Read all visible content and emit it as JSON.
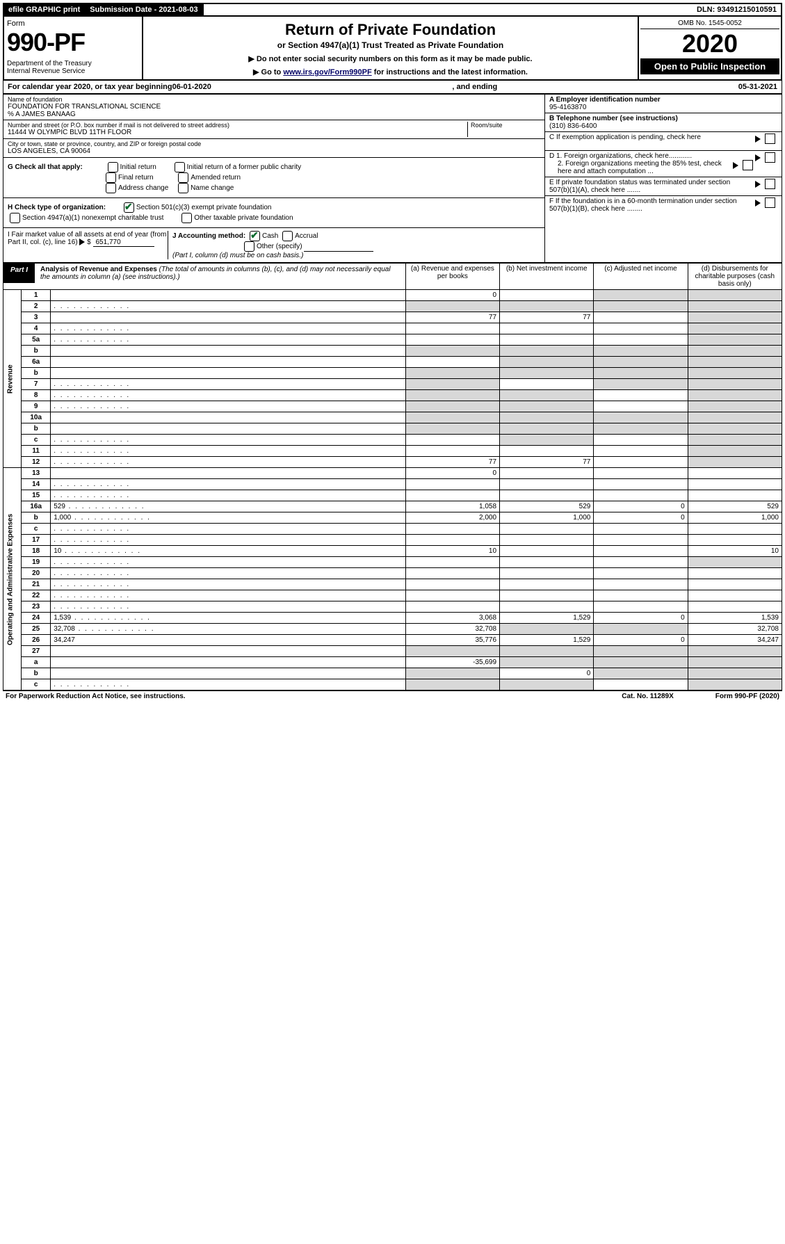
{
  "topbar": {
    "efile": "efile GRAPHIC print",
    "submission_label": "Submission Date - 2021-08-03",
    "dln": "DLN: 93491215010591"
  },
  "header": {
    "form_word": "Form",
    "form_number": "990-PF",
    "dept": "Department of the Treasury\nInternal Revenue Service",
    "title": "Return of Private Foundation",
    "subtitle": "or Section 4947(a)(1) Trust Treated as Private Foundation",
    "inst1": "▶ Do not enter social security numbers on this form as it may be made public.",
    "inst2_prefix": "▶ Go to ",
    "inst2_link": "www.irs.gov/Form990PF",
    "inst2_suffix": " for instructions and the latest information.",
    "omb": "OMB No. 1545-0052",
    "year": "2020",
    "open": "Open to Public Inspection"
  },
  "tax_year": {
    "prefix": "For calendar year 2020, or tax year beginning ",
    "begin": "06-01-2020",
    "mid": " , and ending ",
    "end": "05-31-2021"
  },
  "entity": {
    "name_label": "Name of foundation",
    "name": "FOUNDATION FOR TRANSLATIONAL SCIENCE",
    "care_of": "% A JAMES BANAAG",
    "addr_label": "Number and street (or P.O. box number if mail is not delivered to street address)",
    "addr": "11444 W OLYMPIC BLVD 11TH FLOOR",
    "room_label": "Room/suite",
    "city_label": "City or town, state or province, country, and ZIP or foreign postal code",
    "city": "LOS ANGELES, CA  90064"
  },
  "right_info": {
    "a_label": "A Employer identification number",
    "a_val": "95-4163870",
    "b_label": "B Telephone number (see instructions)",
    "b_val": "(310) 836-6400",
    "c_label": "C If exemption application is pending, check here",
    "d1": "D 1. Foreign organizations, check here............",
    "d2": "2. Foreign organizations meeting the 85% test, check here and attach computation ...",
    "e": "E If private foundation status was terminated under section 507(b)(1)(A), check here .......",
    "f": "F If the foundation is in a 60-month termination under section 507(b)(1)(B), check here ........"
  },
  "checks": {
    "g_label": "G Check all that apply:",
    "g_items": [
      "Initial return",
      "Initial return of a former public charity",
      "Final return",
      "Amended return",
      "Address change",
      "Name change"
    ],
    "h_label": "H Check type of organization:",
    "h1": "Section 501(c)(3) exempt private foundation",
    "h2": "Section 4947(a)(1) nonexempt charitable trust",
    "h3": "Other taxable private foundation",
    "i_label": "I Fair market value of all assets at end of year (from Part II, col. (c), line 16)",
    "i_val": "651,770",
    "j_label": "J Accounting method:",
    "j_cash": "Cash",
    "j_accrual": "Accrual",
    "j_other": "Other (specify)",
    "j_note": "(Part I, column (d) must be on cash basis.)"
  },
  "part1": {
    "tab": "Part I",
    "title": "Analysis of Revenue and Expenses",
    "note": "(The total of amounts in columns (b), (c), and (d) may not necessarily equal the amounts in column (a) (see instructions).)",
    "col_a": "(a) Revenue and expenses per books",
    "col_b": "(b) Net investment income",
    "col_c": "(c) Adjusted net income",
    "col_d": "(d) Disbursements for charitable purposes (cash basis only)",
    "revenue_label": "Revenue",
    "expenses_label": "Operating and Administrative Expenses"
  },
  "rows": [
    {
      "n": "1",
      "d": "",
      "a": "0",
      "b": "",
      "c": "",
      "shade": [
        "c",
        "d"
      ]
    },
    {
      "n": "2",
      "d": "",
      "a": "",
      "b": "",
      "c": "",
      "shade": [
        "a",
        "b",
        "c",
        "d"
      ],
      "dots": true
    },
    {
      "n": "3",
      "d": "",
      "a": "77",
      "b": "77",
      "c": "",
      "shade": [
        "d"
      ]
    },
    {
      "n": "4",
      "d": "",
      "a": "",
      "b": "",
      "c": "",
      "shade": [
        "d"
      ],
      "dots": true
    },
    {
      "n": "5a",
      "d": "",
      "a": "",
      "b": "",
      "c": "",
      "shade": [
        "d"
      ],
      "dots": true
    },
    {
      "n": "b",
      "d": "",
      "a": "",
      "b": "",
      "c": "",
      "shade": [
        "a",
        "b",
        "c",
        "d"
      ]
    },
    {
      "n": "6a",
      "d": "",
      "a": "",
      "b": "",
      "c": "",
      "shade": [
        "b",
        "c",
        "d"
      ]
    },
    {
      "n": "b",
      "d": "",
      "a": "",
      "b": "",
      "c": "",
      "shade": [
        "a",
        "b",
        "c",
        "d"
      ]
    },
    {
      "n": "7",
      "d": "",
      "a": "",
      "b": "",
      "c": "",
      "shade": [
        "a",
        "c",
        "d"
      ],
      "dots": true
    },
    {
      "n": "8",
      "d": "",
      "a": "",
      "b": "",
      "c": "",
      "shade": [
        "a",
        "b",
        "d"
      ],
      "dots": true
    },
    {
      "n": "9",
      "d": "",
      "a": "",
      "b": "",
      "c": "",
      "shade": [
        "a",
        "b",
        "d"
      ],
      "dots": true
    },
    {
      "n": "10a",
      "d": "",
      "a": "",
      "b": "",
      "c": "",
      "shade": [
        "a",
        "b",
        "c",
        "d"
      ]
    },
    {
      "n": "b",
      "d": "",
      "a": "",
      "b": "",
      "c": "",
      "shade": [
        "a",
        "b",
        "c",
        "d"
      ]
    },
    {
      "n": "c",
      "d": "",
      "a": "",
      "b": "",
      "c": "",
      "shade": [
        "b",
        "d"
      ],
      "dots": true
    },
    {
      "n": "11",
      "d": "",
      "a": "",
      "b": "",
      "c": "",
      "shade": [
        "d"
      ],
      "dots": true
    },
    {
      "n": "12",
      "d": "",
      "a": "77",
      "b": "77",
      "c": "",
      "shade": [
        "d"
      ],
      "dots": true
    },
    {
      "n": "13",
      "d": "",
      "a": "0",
      "b": "",
      "c": ""
    },
    {
      "n": "14",
      "d": "",
      "a": "",
      "b": "",
      "c": "",
      "dots": true
    },
    {
      "n": "15",
      "d": "",
      "a": "",
      "b": "",
      "c": "",
      "dots": true
    },
    {
      "n": "16a",
      "d": "529",
      "a": "1,058",
      "b": "529",
      "c": "0",
      "dots": true
    },
    {
      "n": "b",
      "d": "1,000",
      "a": "2,000",
      "b": "1,000",
      "c": "0",
      "dots": true
    },
    {
      "n": "c",
      "d": "",
      "a": "",
      "b": "",
      "c": "",
      "dots": true
    },
    {
      "n": "17",
      "d": "",
      "a": "",
      "b": "",
      "c": "",
      "dots": true
    },
    {
      "n": "18",
      "d": "10",
      "a": "10",
      "b": "",
      "c": "",
      "dots": true
    },
    {
      "n": "19",
      "d": "",
      "a": "",
      "b": "",
      "c": "",
      "shade": [
        "d"
      ],
      "dots": true
    },
    {
      "n": "20",
      "d": "",
      "a": "",
      "b": "",
      "c": "",
      "dots": true
    },
    {
      "n": "21",
      "d": "",
      "a": "",
      "b": "",
      "c": "",
      "dots": true
    },
    {
      "n": "22",
      "d": "",
      "a": "",
      "b": "",
      "c": "",
      "dots": true
    },
    {
      "n": "23",
      "d": "",
      "a": "",
      "b": "",
      "c": "",
      "dots": true
    },
    {
      "n": "24",
      "d": "1,539",
      "a": "3,068",
      "b": "1,529",
      "c": "0",
      "dots": true
    },
    {
      "n": "25",
      "d": "32,708",
      "a": "32,708",
      "b": "",
      "c": "",
      "shade": [
        "b",
        "c"
      ],
      "dots": true
    },
    {
      "n": "26",
      "d": "34,247",
      "a": "35,776",
      "b": "1,529",
      "c": "0"
    },
    {
      "n": "27",
      "d": "",
      "a": "",
      "b": "",
      "c": "",
      "shade": [
        "a",
        "b",
        "c",
        "d"
      ]
    },
    {
      "n": "a",
      "d": "",
      "a": "-35,699",
      "b": "",
      "c": "",
      "shade": [
        "b",
        "c",
        "d"
      ]
    },
    {
      "n": "b",
      "d": "",
      "a": "",
      "b": "0",
      "c": "",
      "shade": [
        "a",
        "c",
        "d"
      ]
    },
    {
      "n": "c",
      "d": "",
      "a": "",
      "b": "",
      "c": "",
      "shade": [
        "a",
        "b",
        "d"
      ],
      "dots": true
    }
  ],
  "footer": {
    "left": "For Paperwork Reduction Act Notice, see instructions.",
    "mid": "Cat. No. 11289X",
    "right": "Form 990-PF (2020)"
  }
}
